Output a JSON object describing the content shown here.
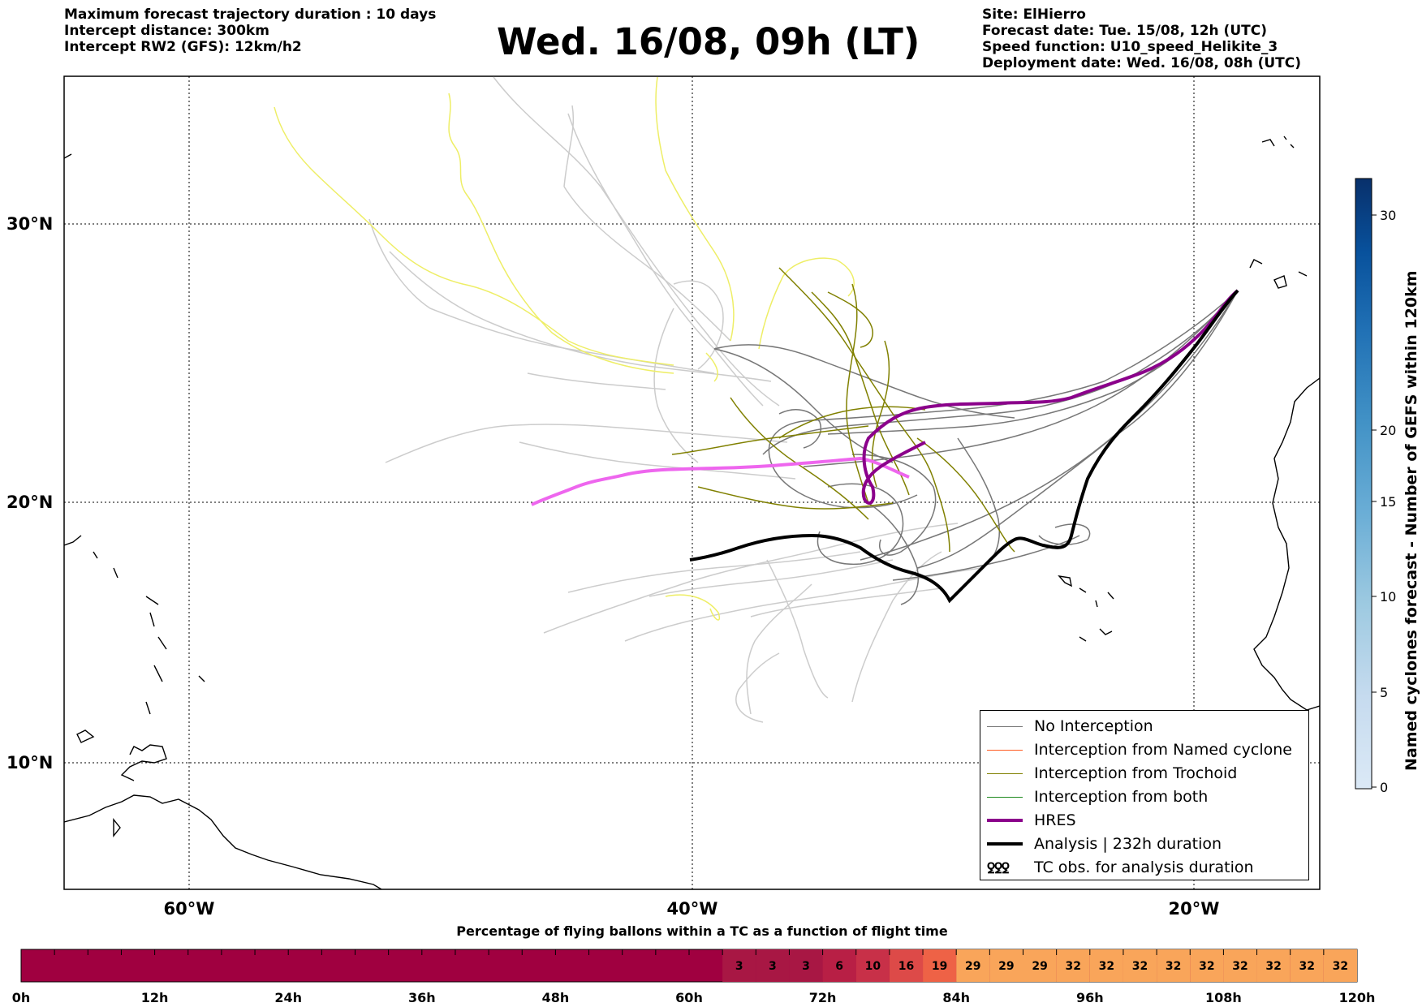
{
  "header": {
    "left_lines": [
      "Maximum forecast trajectory duration : 10 days",
      "Intercept distance: 300km",
      "Intercept RW2 (GFS):  12km/h2"
    ],
    "title": "Wed. 16/08, 09h (LT)",
    "right_lines": [
      "Site: ElHierro",
      "Forecast date: Tue. 15/08, 12h (UTC)",
      "Speed function: U10_speed_Helikite_3",
      "Deployment date: Wed. 16/08, 08h (UTC)"
    ]
  },
  "map": {
    "lat_labels": [
      "30°N",
      "20°N",
      "10°N"
    ],
    "lon_labels": [
      "60°W",
      "40°W",
      "20°W"
    ],
    "colors": {
      "no_interception": "#777777",
      "named_cyclone": "#ff5a1f",
      "trochoid": "#808000",
      "both": "#1f8a1f",
      "hres": "#8b008b",
      "analysis": "#000000",
      "ensemble_light": "#cccccc",
      "yellow": "#eeee66",
      "pink": "#ee66ee"
    }
  },
  "legend": {
    "items": [
      {
        "label": "No Interception",
        "color": "#777777"
      },
      {
        "label": "Interception from Named cyclone",
        "color": "#ff5a1f"
      },
      {
        "label": "Interception from Trochoid",
        "color": "#808000"
      },
      {
        "label": "Interception from both",
        "color": "#1f8a1f"
      },
      {
        "label": "HRES",
        "color": "#8b008b"
      },
      {
        "label": "Analysis | 232h duration",
        "color": "#000000"
      },
      {
        "label": "TC obs. for analysis duration",
        "glyph": "ꝿꝿꝿ"
      }
    ]
  },
  "colorbar_cyclones": {
    "title": "Named cyclones forecast - Number of GEFS within 120km",
    "ticks": [
      "0",
      "5",
      "10",
      "15",
      "20",
      "30"
    ]
  },
  "flight_bar": {
    "title": "Percentage of flying ballons within a TC as a function of flight time",
    "time_labels": [
      "0h",
      "12h",
      "24h",
      "36h",
      "48h",
      "60h",
      "72h",
      "84h",
      "96h",
      "108h",
      "120h"
    ],
    "percent_values": [
      "3",
      "3",
      "3",
      "6",
      "10",
      "16",
      "19",
      "29",
      "29",
      "29",
      "32",
      "32",
      "32",
      "32",
      "32",
      "32",
      "32",
      "32",
      "32"
    ]
  }
}
